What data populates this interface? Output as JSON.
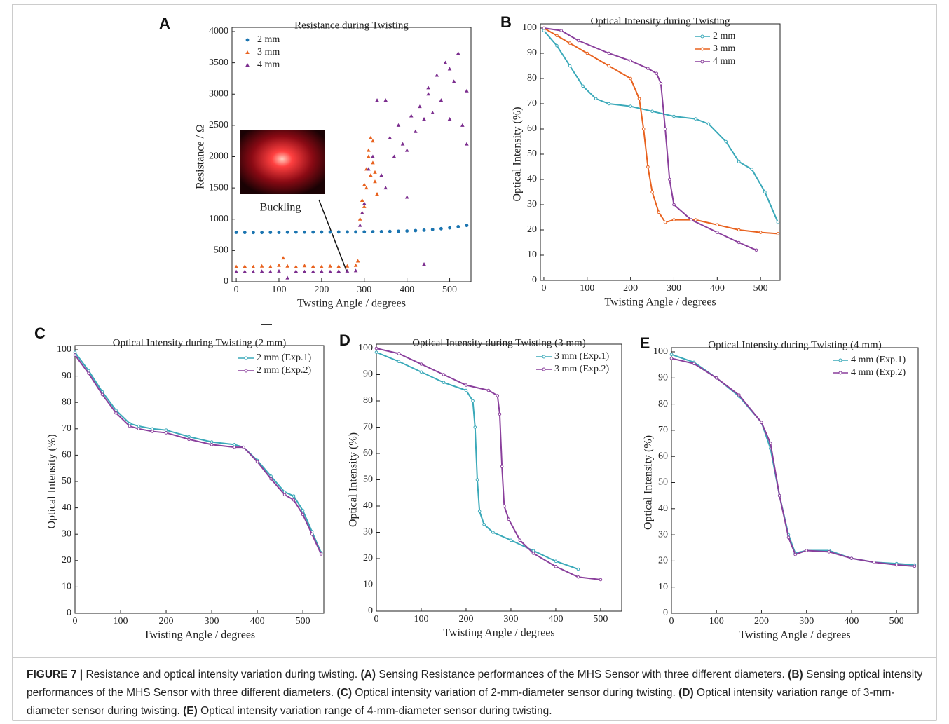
{
  "chart_data": [
    {
      "type": "scatter",
      "panel": "A",
      "title": "Resistance during Twisting",
      "x_label": "Twsting Angle / degrees",
      "y_label": "Resistance / Ω",
      "annotation": "Buckling",
      "legend": "upper left",
      "xlim": [
        -10,
        550
      ],
      "ylim": [
        0,
        4000
      ],
      "xticks": [
        0,
        100,
        200,
        300,
        400,
        500
      ],
      "yticks": [
        0,
        500,
        1000,
        1500,
        2000,
        2500,
        3000,
        3500,
        4000
      ],
      "series": [
        {
          "name": "2 mm",
          "color": "#1a74b0",
          "marker": "circle",
          "x": [
            0,
            20,
            40,
            60,
            80,
            100,
            120,
            140,
            160,
            180,
            200,
            220,
            240,
            260,
            280,
            300,
            320,
            340,
            360,
            380,
            400,
            420,
            440,
            460,
            480,
            500,
            520,
            540
          ],
          "values": [
            790,
            788,
            787,
            788,
            790,
            790,
            792,
            793,
            793,
            794,
            795,
            795,
            796,
            796,
            797,
            798,
            800,
            802,
            805,
            808,
            812,
            818,
            825,
            835,
            848,
            862,
            880,
            900
          ]
        },
        {
          "name": "3 mm",
          "color": "#e8621f",
          "marker": "triangle",
          "x": [
            0,
            20,
            40,
            60,
            80,
            100,
            110,
            120,
            140,
            160,
            180,
            200,
            220,
            240,
            260,
            280,
            285,
            290,
            295,
            300,
            305,
            310,
            315,
            320,
            325,
            330,
            300,
            310,
            320,
            315,
            305,
            325,
            295
          ],
          "values": [
            240,
            245,
            238,
            250,
            240,
            260,
            380,
            250,
            240,
            255,
            245,
            240,
            250,
            245,
            250,
            260,
            330,
            1000,
            1300,
            1550,
            1800,
            2100,
            2300,
            1900,
            1600,
            1400,
            1200,
            2000,
            2250,
            1700,
            1500,
            1750,
            1100
          ]
        },
        {
          "name": "4 mm",
          "color": "#7b2d8e",
          "marker": "triangle",
          "x": [
            0,
            20,
            40,
            60,
            80,
            100,
            120,
            140,
            160,
            180,
            200,
            220,
            240,
            260,
            280,
            290,
            295,
            300,
            310,
            320,
            330,
            340,
            350,
            360,
            370,
            380,
            390,
            400,
            410,
            420,
            430,
            440,
            450,
            460,
            470,
            480,
            490,
            500,
            510,
            520,
            530,
            540,
            350,
            400,
            450,
            500,
            440,
            540
          ],
          "values": [
            160,
            162,
            158,
            165,
            160,
            170,
            60,
            165,
            160,
            162,
            165,
            160,
            168,
            170,
            175,
            900,
            1100,
            1250,
            1800,
            2000,
            2900,
            1700,
            2900,
            2300,
            2000,
            2500,
            2200,
            2100,
            2650,
            2400,
            2800,
            280,
            3100,
            2700,
            3300,
            2900,
            3500,
            2600,
            3200,
            3650,
            2500,
            2200,
            1500,
            1350,
            3000,
            3400,
            2600,
            3050
          ]
        }
      ]
    },
    {
      "type": "line",
      "panel": "B",
      "title": "Optical Intensity during Twisting",
      "x_label": "Twisting Angle / degrees",
      "y_label": "Optical Intensity (%)",
      "legend": "upper right",
      "xlim": [
        -8,
        545
      ],
      "ylim": [
        0,
        100
      ],
      "xticks": [
        0,
        100,
        200,
        300,
        400,
        500
      ],
      "yticks": [
        0,
        10,
        20,
        30,
        40,
        50,
        60,
        70,
        80,
        90,
        100
      ],
      "series": [
        {
          "name": "2 mm",
          "color": "#3aa9b9",
          "x": [
            0,
            30,
            60,
            90,
            120,
            150,
            200,
            250,
            300,
            350,
            380,
            420,
            450,
            480,
            510,
            540
          ],
          "values": [
            99,
            93,
            85,
            77,
            72,
            70,
            69,
            67,
            65,
            64,
            62,
            55,
            47,
            44,
            35,
            23
          ]
        },
        {
          "name": "3 mm",
          "color": "#e8621f",
          "x": [
            0,
            30,
            60,
            100,
            150,
            200,
            220,
            230,
            240,
            250,
            265,
            280,
            300,
            350,
            400,
            450,
            500,
            540
          ],
          "values": [
            100,
            97,
            94,
            90,
            85,
            80,
            72,
            60,
            45,
            35,
            27,
            23,
            24,
            24,
            22,
            20,
            19,
            18.5
          ]
        },
        {
          "name": "4 mm",
          "color": "#8a3f9c",
          "x": [
            0,
            40,
            80,
            150,
            200,
            240,
            260,
            270,
            280,
            290,
            300,
            340,
            400,
            450,
            490
          ],
          "values": [
            100,
            99,
            95,
            90,
            87,
            84,
            82,
            78,
            60,
            40,
            30,
            24,
            19,
            15,
            12
          ]
        }
      ]
    },
    {
      "type": "line",
      "panel": "C",
      "title": "Optical Intensity during Twisting (2 mm)",
      "x_label": "Twisting Angle / degrees",
      "y_label": "Optical Intensity (%)",
      "legend": "upper right",
      "xlim": [
        0,
        546
      ],
      "ylim": [
        0,
        100
      ],
      "xticks": [
        0,
        100,
        200,
        300,
        400,
        500
      ],
      "yticks": [
        0,
        10,
        20,
        30,
        40,
        50,
        60,
        70,
        80,
        90,
        100
      ],
      "series": [
        {
          "name": "2 mm (Exp.1)",
          "color": "#3aa9b9",
          "x": [
            0,
            30,
            60,
            90,
            120,
            140,
            170,
            200,
            250,
            300,
            350,
            370,
            400,
            430,
            460,
            480,
            500,
            520,
            540
          ],
          "values": [
            99,
            92,
            84,
            77,
            72,
            71,
            70,
            69.5,
            67,
            65,
            64,
            63,
            58,
            52,
            46,
            44.5,
            39,
            31,
            23
          ]
        },
        {
          "name": "2 mm (Exp.2)",
          "color": "#8a3f9c",
          "x": [
            0,
            30,
            60,
            90,
            120,
            140,
            170,
            200,
            250,
            300,
            350,
            370,
            400,
            430,
            460,
            480,
            500,
            520,
            540
          ],
          "values": [
            98,
            91,
            83,
            76,
            71,
            70,
            69,
            68.5,
            66,
            64,
            63,
            63,
            57.5,
            51,
            45,
            43,
            37.5,
            30,
            22.5
          ]
        }
      ]
    },
    {
      "type": "line",
      "panel": "D",
      "title": "Optical Intensity during Twisting (3 mm)",
      "x_label": "Twisting Angle / degrees",
      "y_label": "Optical Intensity (%)",
      "legend": "upper right",
      "xlim": [
        0,
        547
      ],
      "ylim": [
        0,
        100
      ],
      "xticks": [
        0,
        100,
        200,
        300,
        400,
        500
      ],
      "yticks": [
        0,
        10,
        20,
        30,
        40,
        50,
        60,
        70,
        80,
        90,
        100
      ],
      "series": [
        {
          "name": "3 mm (Exp.1)",
          "color": "#3aa9b9",
          "x": [
            0,
            50,
            100,
            150,
            200,
            215,
            220,
            225,
            230,
            240,
            260,
            300,
            350,
            400,
            450
          ],
          "values": [
            98.5,
            95,
            91,
            87,
            84,
            80,
            70,
            50,
            38,
            33,
            30,
            27,
            23,
            19,
            16
          ]
        },
        {
          "name": "3 mm (Exp.2)",
          "color": "#8a3f9c",
          "x": [
            0,
            50,
            100,
            150,
            200,
            250,
            270,
            275,
            280,
            285,
            295,
            320,
            350,
            400,
            450,
            500
          ],
          "values": [
            100,
            98,
            94,
            90,
            86,
            84,
            82,
            75,
            55,
            40,
            35,
            27,
            22,
            17,
            13,
            12
          ]
        }
      ]
    },
    {
      "type": "line",
      "panel": "E",
      "title": "Optical Intensity during Twisting (4 mm)",
      "x_label": "Twisting Angle / degrees",
      "y_label": "Optical Intensity (%)",
      "legend": "upper right",
      "xlim": [
        0,
        548
      ],
      "ylim": [
        0,
        100
      ],
      "xticks": [
        0,
        100,
        200,
        300,
        400,
        500
      ],
      "yticks": [
        0,
        10,
        20,
        30,
        40,
        50,
        60,
        70,
        80,
        90,
        100
      ],
      "series": [
        {
          "name": "4 mm (Exp.1)",
          "color": "#3aa9b9",
          "x": [
            0,
            50,
            100,
            150,
            200,
            220,
            240,
            260,
            275,
            300,
            350,
            400,
            450,
            500,
            540
          ],
          "values": [
            99,
            96,
            90,
            83,
            73,
            63,
            45,
            30,
            23,
            24,
            24,
            21,
            19.5,
            19,
            18.5
          ]
        },
        {
          "name": "4 mm (Exp.2)",
          "color": "#8a3f9c",
          "x": [
            0,
            50,
            100,
            150,
            200,
            220,
            240,
            260,
            275,
            300,
            350,
            400,
            450,
            500,
            540
          ],
          "values": [
            97.5,
            95.5,
            90,
            83.5,
            73,
            65,
            45,
            29,
            22.5,
            24,
            23.5,
            21,
            19.5,
            18.5,
            18
          ]
        }
      ]
    }
  ],
  "caption": {
    "label": "FIGURE 7 |",
    "intro": "Resistance and optical intensity variation during twisting.",
    "parts": [
      {
        "tag": "(A)",
        "text": "Sensing Resistance performances of the MHS Sensor with three different diameters."
      },
      {
        "tag": "(B)",
        "text": "Sensing optical intensity performances of the MHS Sensor with three different diameters."
      },
      {
        "tag": "(C)",
        "text": "Optical intensity variation of 2-mm-diameter sensor during twisting."
      },
      {
        "tag": "(D)",
        "text": "Optical intensity variation range of 3-mm-diameter sensor during twisting."
      },
      {
        "tag": "(E)",
        "text": "Optical intensity variation range of 4-mm-diameter sensor during twisting."
      }
    ]
  }
}
